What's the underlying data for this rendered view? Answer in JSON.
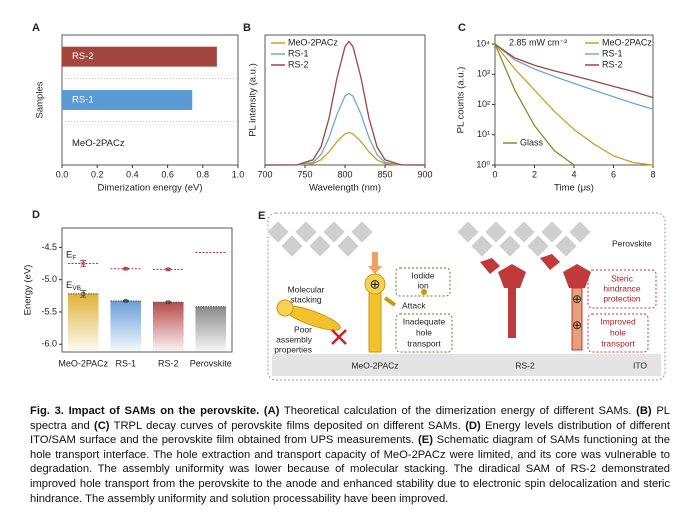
{
  "chart_data": [
    {
      "type": "barh",
      "panel": "A",
      "ylabel": "Samples",
      "xlabel": "Dimerization energy (eV)",
      "categories": [
        "RS-2",
        "RS-1",
        "MeO-2PACz"
      ],
      "values": [
        0.88,
        0.74,
        0.0
      ],
      "colors": [
        "#a4463f",
        "#5b9bd5",
        "#d9a92a"
      ],
      "xlim": [
        0,
        1.0
      ],
      "xticks": [
        {
          "value": 0,
          "label": "0.0"
        },
        0.2,
        0.4,
        0.6,
        0.8,
        {
          "value": 1,
          "label": "1.0"
        }
      ]
    },
    {
      "type": "line",
      "panel": "B",
      "ylabel": "PL intensity (a.u.)",
      "xlabel": "Wavelength (nm)",
      "x": [
        700,
        740,
        760,
        770,
        780,
        790,
        800,
        805,
        810,
        820,
        830,
        840,
        850,
        870,
        900
      ],
      "series": [
        {
          "name": "MeO-2PACz",
          "color": "#c9a227",
          "values": [
            0,
            0,
            0.01,
            0.04,
            0.1,
            0.18,
            0.24,
            0.25,
            0.24,
            0.18,
            0.1,
            0.04,
            0.01,
            0,
            0
          ]
        },
        {
          "name": "RS-1",
          "color": "#6fa8dc",
          "values": [
            0,
            0.001,
            0.02,
            0.08,
            0.21,
            0.39,
            0.53,
            0.55,
            0.53,
            0.39,
            0.21,
            0.08,
            0.02,
            0.001,
            0
          ]
        },
        {
          "name": "RS-2",
          "color": "#a4463f",
          "values": [
            0,
            0.001,
            0.04,
            0.14,
            0.36,
            0.67,
            0.91,
            0.95,
            0.91,
            0.67,
            0.36,
            0.14,
            0.04,
            0.001,
            0
          ]
        }
      ],
      "xlim": [
        700,
        900
      ],
      "ylim": [
        0,
        1
      ],
      "xticks": [
        700,
        750,
        800,
        850,
        900
      ],
      "legend": "upper left"
    },
    {
      "type": "line",
      "panel": "C",
      "ylabel": "PL counts (a.u.)",
      "xlabel": "Time (μs)",
      "annotation": "2.85 mW cm⁻²",
      "log_y": true,
      "x": [
        0,
        1,
        2,
        3,
        4,
        5,
        6,
        7,
        8
      ],
      "series": [
        {
          "name": "MeO-2PACz",
          "color": "#c9a227",
          "values": [
            10000,
            1500,
            300,
            60,
            15,
            5,
            2,
            1.2,
            1
          ]
        },
        {
          "name": "RS-1",
          "color": "#6fa8dc",
          "values": [
            10000,
            3000,
            1500,
            850,
            500,
            300,
            180,
            110,
            70
          ]
        },
        {
          "name": "RS-2",
          "color": "#a4463f",
          "values": [
            10000,
            3500,
            2000,
            1300,
            900,
            600,
            400,
            270,
            170
          ]
        },
        {
          "name": "Glass",
          "color": "#7d8f2a",
          "values": [
            10000,
            300,
            20,
            3,
            1,
            null,
            null,
            null,
            null
          ]
        }
      ],
      "xlim": [
        0,
        8
      ],
      "ylim": [
        1,
        20000
      ],
      "xticks": [
        0,
        2,
        4,
        6,
        8
      ],
      "yticks": [
        {
          "value": 1,
          "label": "10⁰"
        },
        {
          "value": 10,
          "label": "10¹"
        },
        {
          "value": 100,
          "label": "10²"
        },
        {
          "value": 1000,
          "label": "10³"
        },
        {
          "value": 10000,
          "label": "10⁴"
        }
      ],
      "legend": "upper right"
    },
    {
      "type": "energy",
      "panel": "D",
      "ylabel": "Energy (eV)",
      "categories": [
        "MeO-2PACz",
        "RS-1",
        "RS-2",
        "Perovskite"
      ],
      "colors": [
        "#e0b33a",
        "#6a9fd8",
        "#b84a4a",
        "#8a8a8a"
      ],
      "series": [
        {
          "name": "E",
          "sub": "F",
          "color": "#b03a3a",
          "values": [
            -4.75,
            -4.83,
            -4.84,
            -4.58
          ],
          "errors": [
            0.05,
            0.01,
            0.01,
            null
          ]
        },
        {
          "name": "E",
          "sub": "VB",
          "color": "#444444",
          "values": [
            -5.22,
            -5.33,
            -5.35,
            -5.42
          ],
          "errors": [
            0.05,
            0.01,
            0.01,
            null
          ]
        }
      ],
      "ylim": [
        -6.12,
        -4.2
      ],
      "yticks": [
        -4.5,
        {
          "value": -5,
          "label": "-5.0"
        },
        -5.5,
        {
          "value": -6,
          "label": "-6.0"
        }
      ]
    }
  ],
  "diagram": {
    "panel": "E",
    "perovskite": "Perovskite",
    "stacking": [
      "Molecular",
      "stacking"
    ],
    "iodide": [
      "Iodide",
      "ion"
    ],
    "attack": "Attack",
    "poor": [
      "Poor",
      "assembly",
      "properties"
    ],
    "inadequate": [
      "Inadequate",
      "hole",
      "transport"
    ],
    "left_name": "MeO-2PACz",
    "right_name": "RS-2",
    "ito": "ITO",
    "steric": [
      "Steric",
      "hindrance",
      "protection"
    ],
    "improved": [
      "Improved",
      "hole",
      "transport"
    ]
  },
  "caption": {
    "title": "Fig. 3. Impact of SAMs on the perovskite.",
    "segments": [
      {
        "label": "(A)",
        "text": " Theoretical calculation of the dimerization energy of different SAMs. "
      },
      {
        "label": "(B)",
        "text": " PL spectra and "
      },
      {
        "label": "(C)",
        "text": " TRPL decay curves of perovskite films deposited on different SAMs. "
      },
      {
        "label": "(D)",
        "text": " Energy levels distribution of different ITO/SAM surface and the perovskite film obtained from UPS measurements. "
      },
      {
        "label": "(E)",
        "text": " Schematic diagram of SAMs functioning at the hole transport interface. The hole extraction and transport capacity of MeO-2PACz were limited, and its core was vulnerable to degradation. The assembly uniformity was lower because of molecular stacking. The diradical SAM of RS-2 demonstrated improved hole transport from the perovskite to the anode and enhanced stability due to electronic spin delocalization and steric hindrance. The assembly uniformity and solution processability have been improved."
      }
    ]
  }
}
